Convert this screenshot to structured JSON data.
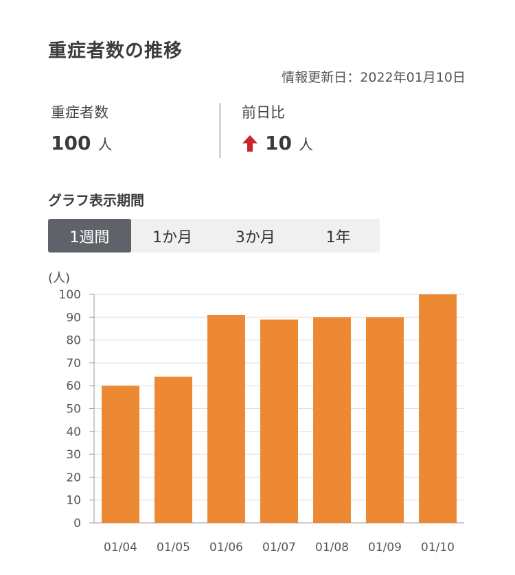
{
  "header": {
    "title": "重症者数の推移",
    "updated": "情報更新日：2022年01月10日"
  },
  "stats": {
    "total": {
      "label": "重症者数",
      "value": "100",
      "unit": "人"
    },
    "diff": {
      "label": "前日比",
      "value": "10",
      "unit": "人",
      "direction": "up",
      "arrow_icon": "arrow-up-icon",
      "arrow_color": "#c62828"
    }
  },
  "period": {
    "label": "グラフ表示期間",
    "tabs": [
      "1週間",
      "1か月",
      "3か月",
      "1年"
    ],
    "active": 0
  },
  "colors": {
    "bar": "#ee8933",
    "grid": "#dddddd",
    "active_tab": "#5f6269"
  },
  "chart_data": {
    "type": "bar",
    "unit_label": "(人)",
    "categories": [
      "01/04",
      "01/05",
      "01/06",
      "01/07",
      "01/08",
      "01/09",
      "01/10"
    ],
    "values": [
      60,
      64,
      91,
      89,
      90,
      90,
      100
    ],
    "ylim": [
      0,
      100
    ],
    "yticks": [
      0,
      10,
      20,
      30,
      40,
      50,
      60,
      70,
      80,
      90,
      100
    ],
    "grid": true
  }
}
